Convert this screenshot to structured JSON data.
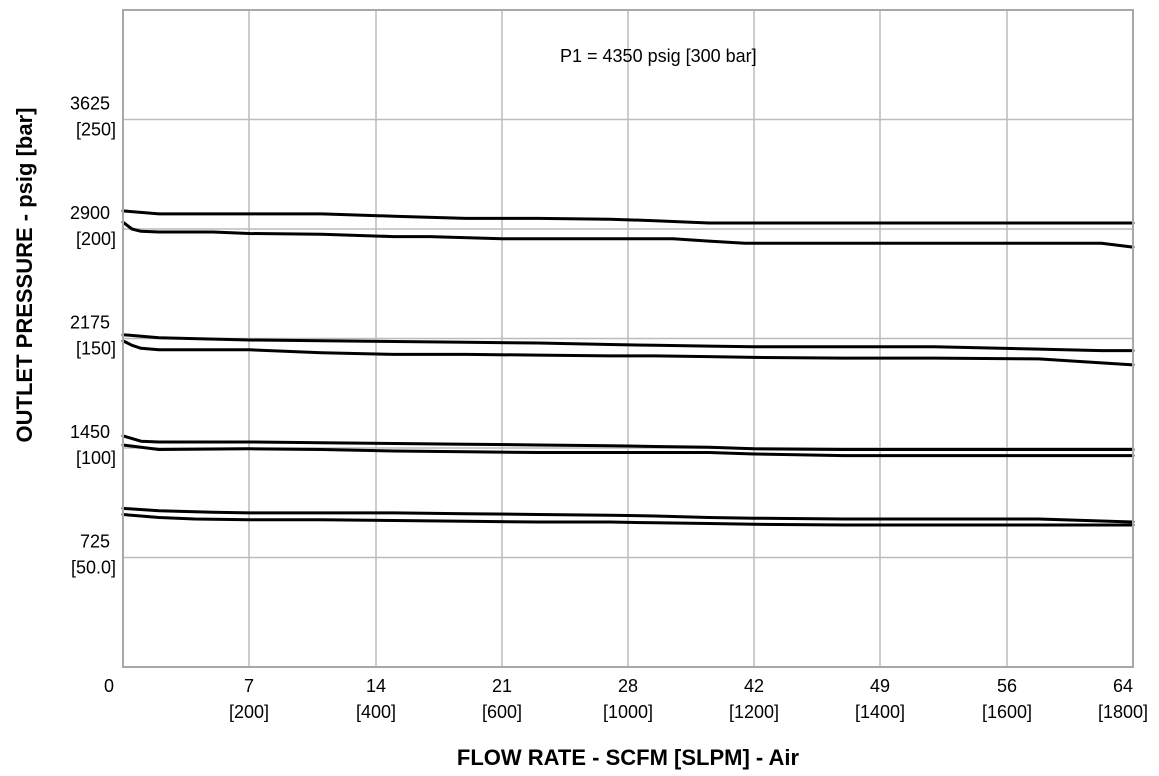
{
  "chart_data": {
    "type": "line",
    "annotation": "P1 = 4350 psig [300 bar]",
    "xlabel": "FLOW RATE - SCFM [SLPM] - Air",
    "ylabel": "OUTLET PRESSURE - psig [bar]",
    "grid": true,
    "legend": "none",
    "xlim": [
      0,
      64
    ],
    "ylim": [
      0,
      4350
    ],
    "x_ticks": [
      {
        "label": "0",
        "sub": ""
      },
      {
        "label": "7",
        "sub": "[200]"
      },
      {
        "label": "14",
        "sub": "[400]"
      },
      {
        "label": "21",
        "sub": "[600]"
      },
      {
        "label": "28",
        "sub": "[1000]"
      },
      {
        "label": "42",
        "sub": "[1200]"
      },
      {
        "label": "49",
        "sub": "[1400]"
      },
      {
        "label": "56",
        "sub": "[1600]"
      },
      {
        "label": "64",
        "sub": "[1800]"
      }
    ],
    "y_ticks": [
      {
        "value": 725,
        "label": "725",
        "sub": "[50.0]"
      },
      {
        "value": 1450,
        "label": "1450",
        "sub": "[100]"
      },
      {
        "value": 2175,
        "label": "2175",
        "sub": "[150]"
      },
      {
        "value": 2900,
        "label": "2900",
        "sub": "[200]"
      },
      {
        "value": 3625,
        "label": "3625",
        "sub": "[250]"
      }
    ],
    "series": [
      {
        "x": [
          0,
          2,
          7,
          11,
          15,
          19,
          23,
          27,
          31,
          37,
          42,
          47,
          52,
          58,
          64
        ],
        "y": [
          3020,
          3000,
          3000,
          3000,
          2985,
          2970,
          2970,
          2965,
          2955,
          2940,
          2940,
          2940,
          2940,
          2940,
          2940
        ]
      },
      {
        "x": [
          0,
          0.5,
          1,
          2,
          5,
          7,
          11,
          15,
          17,
          21,
          25,
          29,
          33,
          37,
          41,
          44,
          49,
          54,
          58,
          60,
          62,
          64
        ],
        "y": [
          2945,
          2900,
          2885,
          2880,
          2880,
          2870,
          2865,
          2850,
          2850,
          2835,
          2835,
          2835,
          2835,
          2820,
          2805,
          2805,
          2805,
          2805,
          2805,
          2805,
          2805,
          2780
        ]
      },
      {
        "x": [
          0,
          2,
          7,
          11,
          15,
          19,
          23,
          27,
          31,
          37,
          42,
          47,
          52,
          58,
          62,
          64
        ],
        "y": [
          2200,
          2180,
          2165,
          2160,
          2155,
          2150,
          2145,
          2135,
          2130,
          2125,
          2120,
          2120,
          2120,
          2105,
          2095,
          2095
        ]
      },
      {
        "x": [
          0,
          0.5,
          1,
          2,
          4,
          7,
          11,
          15,
          19,
          23,
          27,
          31,
          37,
          42,
          47,
          52,
          58,
          64
        ],
        "y": [
          2160,
          2130,
          2110,
          2100,
          2100,
          2100,
          2080,
          2070,
          2070,
          2065,
          2060,
          2060,
          2055,
          2050,
          2045,
          2045,
          2040,
          2000
        ]
      },
      {
        "x": [
          0,
          1,
          2,
          7,
          11,
          15,
          19,
          23,
          27,
          31,
          37,
          42,
          47,
          52,
          58,
          64
        ],
        "y": [
          1530,
          1495,
          1490,
          1490,
          1485,
          1480,
          1475,
          1470,
          1465,
          1460,
          1455,
          1445,
          1440,
          1440,
          1440,
          1440
        ]
      },
      {
        "x": [
          0,
          2,
          7,
          11,
          15,
          19,
          23,
          27,
          31,
          37,
          42,
          47,
          52,
          58,
          64
        ],
        "y": [
          1470,
          1440,
          1445,
          1440,
          1430,
          1425,
          1420,
          1420,
          1420,
          1420,
          1410,
          1400,
          1400,
          1400,
          1400
        ]
      },
      {
        "x": [
          0,
          2,
          5,
          7,
          11,
          15,
          19,
          23,
          27,
          31,
          37,
          42,
          47,
          52,
          58,
          64
        ],
        "y": [
          1050,
          1035,
          1025,
          1020,
          1020,
          1020,
          1015,
          1010,
          1005,
          1000,
          990,
          985,
          980,
          980,
          980,
          960
        ]
      },
      {
        "x": [
          0,
          2,
          4,
          7,
          11,
          15,
          19,
          23,
          27,
          31,
          37,
          42,
          47,
          52,
          58,
          64
        ],
        "y": [
          1010,
          990,
          980,
          975,
          975,
          970,
          965,
          960,
          960,
          955,
          950,
          945,
          940,
          940,
          940,
          940
        ]
      }
    ]
  }
}
